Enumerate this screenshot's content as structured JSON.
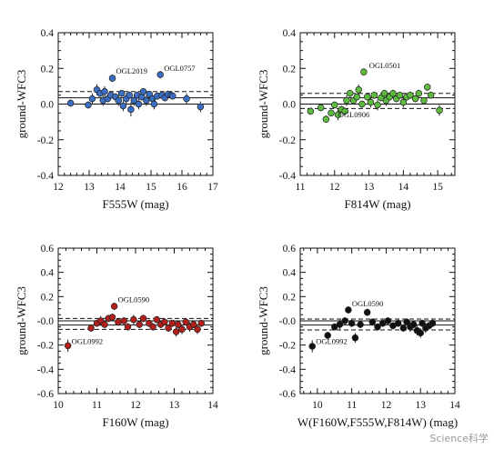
{
  "chart_data": [
    {
      "type": "scatter",
      "xlabel": "F555W (mag)",
      "ylabel": "ground-WFC3",
      "xlim": [
        12,
        17
      ],
      "ylim": [
        -0.4,
        0.4
      ],
      "xticks": [
        "12",
        "13",
        "14",
        "15",
        "16",
        "17"
      ],
      "yticks": [
        "0.4",
        "0.2",
        "0.0",
        "-0.2",
        "-0.4"
      ],
      "color": "#3a6fc4",
      "hlines": {
        "solid": [
          0.0,
          0.035
        ],
        "dashed": [
          0.07
        ]
      },
      "annotations": [
        {
          "text": "OGL2019",
          "x": 13.75,
          "y": 0.16
        },
        {
          "text": "OGL0757",
          "x": 15.3,
          "y": 0.175
        }
      ],
      "points": [
        {
          "x": 12.4,
          "y": 0.005,
          "err": 0.02
        },
        {
          "x": 12.97,
          "y": -0.005,
          "err": 0.02
        },
        {
          "x": 13.1,
          "y": 0.03,
          "err": 0.03
        },
        {
          "x": 13.25,
          "y": 0.08,
          "err": 0.03
        },
        {
          "x": 13.35,
          "y": 0.06,
          "err": 0.02
        },
        {
          "x": 13.45,
          "y": 0.02,
          "err": 0.03
        },
        {
          "x": 13.5,
          "y": 0.07,
          "err": 0.03
        },
        {
          "x": 13.6,
          "y": 0.03,
          "err": 0.02
        },
        {
          "x": 13.7,
          "y": 0.05,
          "err": 0.02
        },
        {
          "x": 13.75,
          "y": 0.145,
          "err": 0.02
        },
        {
          "x": 13.85,
          "y": 0.04,
          "err": 0.02
        },
        {
          "x": 13.95,
          "y": 0.02,
          "err": 0.03
        },
        {
          "x": 14.05,
          "y": 0.06,
          "err": 0.02
        },
        {
          "x": 14.1,
          "y": -0.01,
          "err": 0.03
        },
        {
          "x": 14.2,
          "y": 0.03,
          "err": 0.03
        },
        {
          "x": 14.3,
          "y": 0.05,
          "err": 0.02
        },
        {
          "x": 14.35,
          "y": -0.03,
          "err": 0.04
        },
        {
          "x": 14.45,
          "y": 0.02,
          "err": 0.03
        },
        {
          "x": 14.55,
          "y": 0.05,
          "err": 0.02
        },
        {
          "x": 14.6,
          "y": 0.0,
          "err": 0.03
        },
        {
          "x": 14.7,
          "y": 0.04,
          "err": 0.02
        },
        {
          "x": 14.75,
          "y": 0.07,
          "err": 0.02
        },
        {
          "x": 14.85,
          "y": 0.02,
          "err": 0.03
        },
        {
          "x": 14.95,
          "y": 0.055,
          "err": 0.02
        },
        {
          "x": 15.05,
          "y": 0.03,
          "err": 0.02
        },
        {
          "x": 15.1,
          "y": 0.0,
          "err": 0.03
        },
        {
          "x": 15.2,
          "y": 0.045,
          "err": 0.02
        },
        {
          "x": 15.3,
          "y": 0.165,
          "err": 0.02
        },
        {
          "x": 15.35,
          "y": 0.05,
          "err": 0.02
        },
        {
          "x": 15.45,
          "y": 0.035,
          "err": 0.02
        },
        {
          "x": 15.55,
          "y": 0.055,
          "err": 0.02
        },
        {
          "x": 15.65,
          "y": 0.05,
          "err": 0.02
        },
        {
          "x": 15.7,
          "y": 0.045,
          "err": 0.02
        },
        {
          "x": 16.15,
          "y": 0.03,
          "err": 0.03
        },
        {
          "x": 16.6,
          "y": -0.015,
          "err": 0.03
        }
      ]
    },
    {
      "type": "scatter",
      "xlabel": "F814W (mag)",
      "ylabel": "ground-WFC3",
      "xlim": [
        11,
        15.5
      ],
      "ylim": [
        -0.4,
        0.4
      ],
      "xticks": [
        "11",
        "12",
        "13",
        "14",
        "15"
      ],
      "yticks": [
        "0.4",
        "0.2",
        "0.0",
        "-0.2",
        "-0.4"
      ],
      "color": "#5dbb3f",
      "hlines": {
        "solid": [
          0.0,
          0.035
        ],
        "dashed": [
          0.06,
          -0.025
        ]
      },
      "annotations": [
        {
          "text": "OGL0501",
          "x": 12.9,
          "y": 0.19
        },
        {
          "text": "OGL0906",
          "x": 12.0,
          "y": -0.085
        }
      ],
      "points": [
        {
          "x": 11.3,
          "y": -0.04,
          "err": 0.02
        },
        {
          "x": 11.6,
          "y": -0.02,
          "err": 0.02
        },
        {
          "x": 11.75,
          "y": -0.085,
          "err": 0.02
        },
        {
          "x": 11.9,
          "y": -0.05,
          "err": 0.02
        },
        {
          "x": 12.0,
          "y": -0.005,
          "err": 0.02
        },
        {
          "x": 12.1,
          "y": -0.06,
          "err": 0.03
        },
        {
          "x": 12.2,
          "y": -0.03,
          "err": 0.02
        },
        {
          "x": 12.3,
          "y": -0.04,
          "err": 0.02
        },
        {
          "x": 12.35,
          "y": 0.02,
          "err": 0.03
        },
        {
          "x": 12.45,
          "y": 0.06,
          "err": 0.02
        },
        {
          "x": 12.55,
          "y": 0.02,
          "err": 0.02
        },
        {
          "x": 12.65,
          "y": 0.04,
          "err": 0.02
        },
        {
          "x": 12.7,
          "y": 0.08,
          "err": 0.03
        },
        {
          "x": 12.8,
          "y": 0.0,
          "err": 0.02
        },
        {
          "x": 12.85,
          "y": 0.18,
          "err": 0.02
        },
        {
          "x": 12.95,
          "y": 0.04,
          "err": 0.02
        },
        {
          "x": 13.05,
          "y": 0.01,
          "err": 0.03
        },
        {
          "x": 13.15,
          "y": 0.05,
          "err": 0.02
        },
        {
          "x": 13.25,
          "y": -0.005,
          "err": 0.03
        },
        {
          "x": 13.35,
          "y": 0.035,
          "err": 0.02
        },
        {
          "x": 13.45,
          "y": 0.06,
          "err": 0.02
        },
        {
          "x": 13.5,
          "y": 0.02,
          "err": 0.03
        },
        {
          "x": 13.6,
          "y": 0.04,
          "err": 0.02
        },
        {
          "x": 13.7,
          "y": 0.06,
          "err": 0.02
        },
        {
          "x": 13.8,
          "y": 0.03,
          "err": 0.02
        },
        {
          "x": 13.9,
          "y": 0.05,
          "err": 0.02
        },
        {
          "x": 14.0,
          "y": 0.01,
          "err": 0.03
        },
        {
          "x": 14.1,
          "y": 0.04,
          "err": 0.02
        },
        {
          "x": 14.2,
          "y": 0.05,
          "err": 0.02
        },
        {
          "x": 14.35,
          "y": 0.03,
          "err": 0.02
        },
        {
          "x": 14.45,
          "y": 0.06,
          "err": 0.02
        },
        {
          "x": 14.6,
          "y": 0.02,
          "err": 0.02
        },
        {
          "x": 14.7,
          "y": 0.095,
          "err": 0.02
        },
        {
          "x": 14.8,
          "y": 0.05,
          "err": 0.02
        },
        {
          "x": 15.05,
          "y": -0.035,
          "err": 0.03
        }
      ]
    },
    {
      "type": "scatter",
      "xlabel": "F160W  (mag)",
      "ylabel": "ground-WFC3",
      "xlim": [
        10,
        14
      ],
      "ylim": [
        -0.6,
        0.6
      ],
      "xticks": [
        "10",
        "11",
        "12",
        "13",
        "14"
      ],
      "yticks": [
        "0.6",
        "0.4",
        "0.2",
        "-0.0",
        "-0.2",
        "-0.4",
        "-0.6"
      ],
      "color": "#b3201c",
      "hlines": {
        "solid": [
          0.0,
          -0.035
        ],
        "dashed": [
          -0.07,
          0.02
        ]
      },
      "annotations": [
        {
          "text": "OGL0590",
          "x": 11.45,
          "y": 0.14
        },
        {
          "text": "OGL0992",
          "x": 10.25,
          "y": -0.205
        }
      ],
      "points": [
        {
          "x": 10.25,
          "y": -0.205,
          "err": 0.05
        },
        {
          "x": 10.85,
          "y": -0.06,
          "err": 0.03
        },
        {
          "x": 11.0,
          "y": -0.02,
          "err": 0.03
        },
        {
          "x": 11.1,
          "y": 0.0,
          "err": 0.04
        },
        {
          "x": 11.2,
          "y": -0.03,
          "err": 0.03
        },
        {
          "x": 11.3,
          "y": 0.02,
          "err": 0.03
        },
        {
          "x": 11.4,
          "y": 0.03,
          "err": 0.03
        },
        {
          "x": 11.45,
          "y": 0.12,
          "err": 0.03
        },
        {
          "x": 11.55,
          "y": -0.01,
          "err": 0.03
        },
        {
          "x": 11.7,
          "y": 0.0,
          "err": 0.03
        },
        {
          "x": 11.8,
          "y": -0.05,
          "err": 0.03
        },
        {
          "x": 11.95,
          "y": 0.01,
          "err": 0.04
        },
        {
          "x": 12.1,
          "y": -0.03,
          "err": 0.03
        },
        {
          "x": 12.2,
          "y": 0.02,
          "err": 0.03
        },
        {
          "x": 12.35,
          "y": -0.02,
          "err": 0.03
        },
        {
          "x": 12.45,
          "y": -0.05,
          "err": 0.03
        },
        {
          "x": 12.55,
          "y": 0.01,
          "err": 0.03
        },
        {
          "x": 12.65,
          "y": -0.03,
          "err": 0.03
        },
        {
          "x": 12.75,
          "y": -0.01,
          "err": 0.03
        },
        {
          "x": 12.85,
          "y": -0.06,
          "err": 0.03
        },
        {
          "x": 12.95,
          "y": -0.02,
          "err": 0.03
        },
        {
          "x": 13.05,
          "y": -0.09,
          "err": 0.04
        },
        {
          "x": 13.1,
          "y": -0.03,
          "err": 0.03
        },
        {
          "x": 13.2,
          "y": -0.07,
          "err": 0.04
        },
        {
          "x": 13.3,
          "y": -0.01,
          "err": 0.03
        },
        {
          "x": 13.4,
          "y": -0.05,
          "err": 0.04
        },
        {
          "x": 13.5,
          "y": -0.03,
          "err": 0.03
        },
        {
          "x": 13.6,
          "y": -0.07,
          "err": 0.04
        },
        {
          "x": 13.7,
          "y": -0.02,
          "err": 0.03
        }
      ]
    },
    {
      "type": "scatter",
      "xlabel": "W(F160W,F555W,F814W) (mag)",
      "ylabel": "ground-WFC3",
      "xlim": [
        9.5,
        14
      ],
      "ylim": [
        -0.6,
        0.6
      ],
      "xticks": [
        "10",
        "11",
        "12",
        "13",
        "14"
      ],
      "yticks": [
        "0.6",
        "0.4",
        "0.2",
        "-0.0",
        "-0.2",
        "-0.4",
        "-0.6"
      ],
      "color": "#111111",
      "hlines": {
        "solid": [
          0.0,
          -0.035
        ],
        "dashed": [
          -0.075,
          0.015
        ]
      },
      "annotations": [
        {
          "text": "OGL0590",
          "x": 10.9,
          "y": 0.105
        },
        {
          "text": "OGL0992",
          "x": 9.85,
          "y": -0.205
        }
      ],
      "points": [
        {
          "x": 9.85,
          "y": -0.21,
          "err": 0.05
        },
        {
          "x": 10.3,
          "y": -0.12,
          "err": 0.03
        },
        {
          "x": 10.5,
          "y": -0.05,
          "err": 0.03
        },
        {
          "x": 10.65,
          "y": -0.03,
          "err": 0.04
        },
        {
          "x": 10.8,
          "y": 0.0,
          "err": 0.03
        },
        {
          "x": 10.9,
          "y": 0.09,
          "err": 0.03
        },
        {
          "x": 11.0,
          "y": -0.02,
          "err": 0.03
        },
        {
          "x": 11.1,
          "y": -0.14,
          "err": 0.04
        },
        {
          "x": 11.25,
          "y": -0.03,
          "err": 0.03
        },
        {
          "x": 11.45,
          "y": 0.07,
          "err": 0.03
        },
        {
          "x": 11.6,
          "y": -0.01,
          "err": 0.03
        },
        {
          "x": 11.75,
          "y": -0.05,
          "err": 0.03
        },
        {
          "x": 11.9,
          "y": -0.02,
          "err": 0.03
        },
        {
          "x": 12.05,
          "y": 0.0,
          "err": 0.03
        },
        {
          "x": 12.2,
          "y": -0.04,
          "err": 0.03
        },
        {
          "x": 12.35,
          "y": -0.02,
          "err": 0.03
        },
        {
          "x": 12.5,
          "y": -0.06,
          "err": 0.03
        },
        {
          "x": 12.6,
          "y": -0.01,
          "err": 0.03
        },
        {
          "x": 12.7,
          "y": -0.05,
          "err": 0.04
        },
        {
          "x": 12.8,
          "y": -0.03,
          "err": 0.03
        },
        {
          "x": 12.9,
          "y": -0.08,
          "err": 0.04
        },
        {
          "x": 13.0,
          "y": -0.1,
          "err": 0.04
        },
        {
          "x": 13.05,
          "y": -0.02,
          "err": 0.03
        },
        {
          "x": 13.15,
          "y": -0.06,
          "err": 0.04
        },
        {
          "x": 13.25,
          "y": -0.04,
          "err": 0.03
        },
        {
          "x": 13.35,
          "y": -0.02,
          "err": 0.03
        }
      ]
    }
  ],
  "watermark": "Science科学"
}
